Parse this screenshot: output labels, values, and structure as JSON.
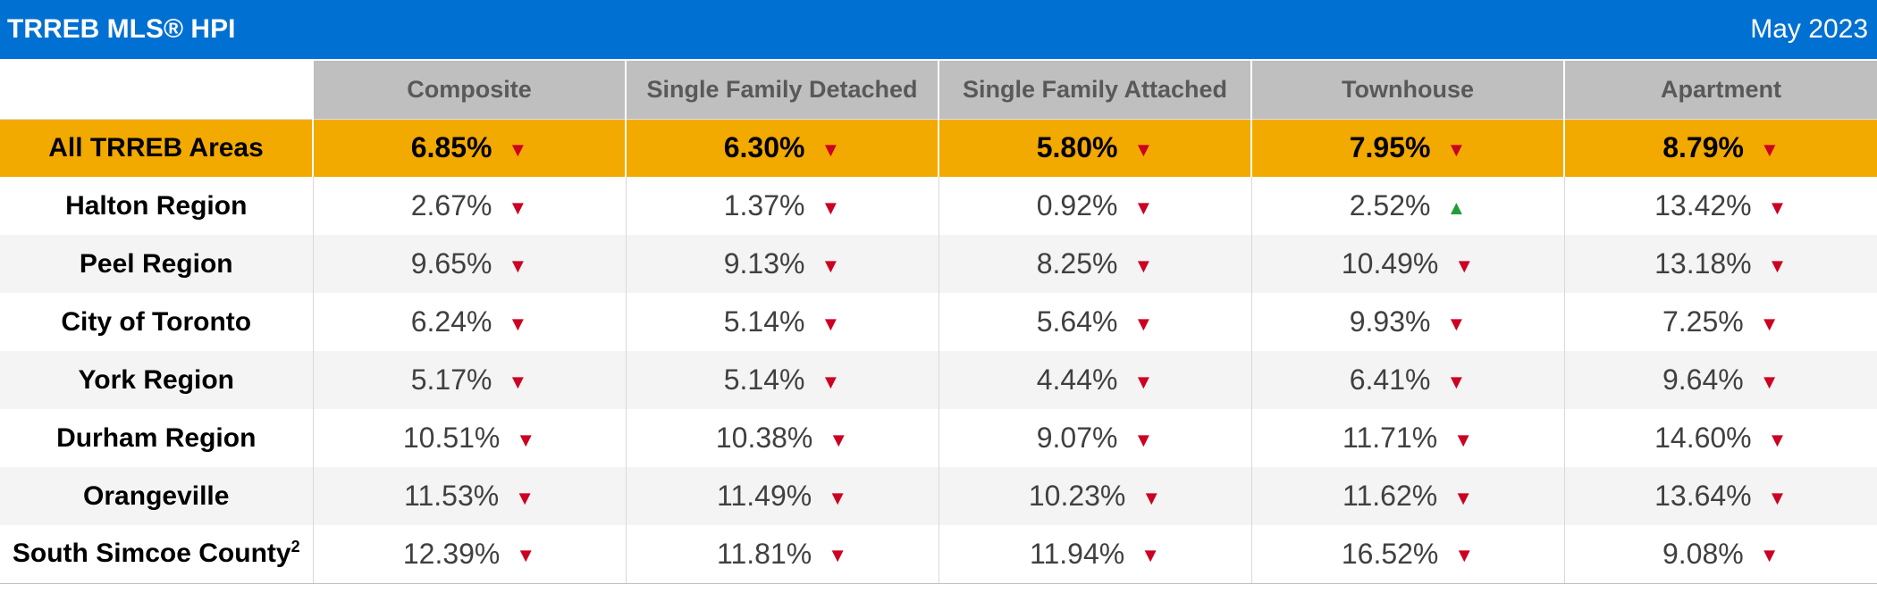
{
  "header": {
    "title": "TRREB MLS® HPI",
    "date": "May 2023"
  },
  "colors": {
    "title_bar": "#0070d2",
    "header_row": "#bfbfbf",
    "summary_row": "#f2a900",
    "arrow_down": "#cc0022",
    "arrow_up": "#1e9e3a"
  },
  "table": {
    "columns": [
      "Composite",
      "Single Family Detached",
      "Single Family Attached",
      "Townhouse",
      "Apartment"
    ],
    "summary": {
      "label": "All TRREB Areas",
      "cells": [
        {
          "value": "6.85%",
          "trend": "down"
        },
        {
          "value": "6.30%",
          "trend": "down"
        },
        {
          "value": "5.80%",
          "trend": "down"
        },
        {
          "value": "7.95%",
          "trend": "down"
        },
        {
          "value": "8.79%",
          "trend": "down"
        }
      ]
    },
    "rows": [
      {
        "label": "Halton Region",
        "cells": [
          {
            "value": "2.67%",
            "trend": "down"
          },
          {
            "value": "1.37%",
            "trend": "down"
          },
          {
            "value": "0.92%",
            "trend": "down"
          },
          {
            "value": "2.52%",
            "trend": "up"
          },
          {
            "value": "13.42%",
            "trend": "down"
          }
        ]
      },
      {
        "label": "Peel Region",
        "cells": [
          {
            "value": "9.65%",
            "trend": "down"
          },
          {
            "value": "9.13%",
            "trend": "down"
          },
          {
            "value": "8.25%",
            "trend": "down"
          },
          {
            "value": "10.49%",
            "trend": "down"
          },
          {
            "value": "13.18%",
            "trend": "down"
          }
        ]
      },
      {
        "label": "City of Toronto",
        "cells": [
          {
            "value": "6.24%",
            "trend": "down"
          },
          {
            "value": "5.14%",
            "trend": "down"
          },
          {
            "value": "5.64%",
            "trend": "down"
          },
          {
            "value": "9.93%",
            "trend": "down"
          },
          {
            "value": "7.25%",
            "trend": "down"
          }
        ]
      },
      {
        "label": "York Region",
        "cells": [
          {
            "value": "5.17%",
            "trend": "down"
          },
          {
            "value": "5.14%",
            "trend": "down"
          },
          {
            "value": "4.44%",
            "trend": "down"
          },
          {
            "value": "6.41%",
            "trend": "down"
          },
          {
            "value": "9.64%",
            "trend": "down"
          }
        ]
      },
      {
        "label": "Durham Region",
        "cells": [
          {
            "value": "10.51%",
            "trend": "down"
          },
          {
            "value": "10.38%",
            "trend": "down"
          },
          {
            "value": "9.07%",
            "trend": "down"
          },
          {
            "value": "11.71%",
            "trend": "down"
          },
          {
            "value": "14.60%",
            "trend": "down"
          }
        ]
      },
      {
        "label": "Orangeville",
        "cells": [
          {
            "value": "11.53%",
            "trend": "down"
          },
          {
            "value": "11.49%",
            "trend": "down"
          },
          {
            "value": "10.23%",
            "trend": "down"
          },
          {
            "value": "11.62%",
            "trend": "down"
          },
          {
            "value": "13.64%",
            "trend": "down"
          }
        ]
      },
      {
        "label": "South Simcoe County",
        "footnote": "2",
        "cells": [
          {
            "value": "12.39%",
            "trend": "down"
          },
          {
            "value": "11.81%",
            "trend": "down"
          },
          {
            "value": "11.94%",
            "trend": "down"
          },
          {
            "value": "16.52%",
            "trend": "down"
          },
          {
            "value": "9.08%",
            "trend": "down"
          }
        ]
      }
    ]
  }
}
